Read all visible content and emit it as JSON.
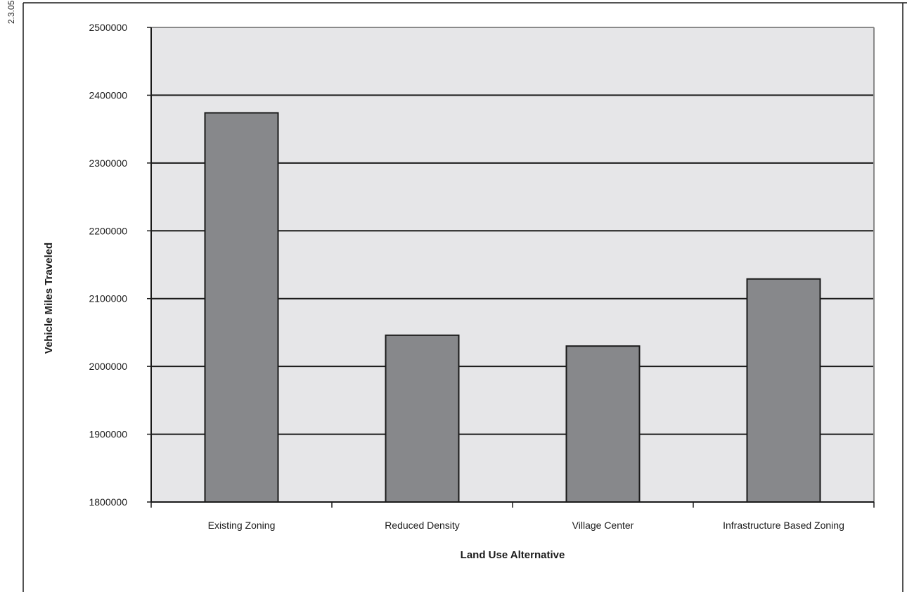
{
  "page_label": "2.3.05",
  "chart_data": {
    "type": "bar",
    "title": "",
    "xlabel": "Land Use Alternative",
    "ylabel": "Vehicle Miles Traveled",
    "categories": [
      "Existing Zoning",
      "Reduced Density",
      "Village Center",
      "Infrastructure Based Zoning"
    ],
    "values": [
      2374000,
      2046000,
      2030000,
      2129000
    ],
    "ylim": [
      1800000,
      2500000
    ],
    "yticks": [
      1800000,
      1900000,
      2000000,
      2100000,
      2200000,
      2300000,
      2400000,
      2500000
    ],
    "ytick_labels": [
      "1800000",
      "1900000",
      "2000000",
      "2100000",
      "2200000",
      "2300000",
      "2400000",
      "2500000"
    ],
    "grid": true,
    "legend": "none",
    "colors": {
      "bar": "#87888b",
      "bar_stroke": "#1a1a1a",
      "plot_background": "#e6e6e8",
      "gridline": "#1a1a1a",
      "axis": "#1a1a1a"
    }
  }
}
